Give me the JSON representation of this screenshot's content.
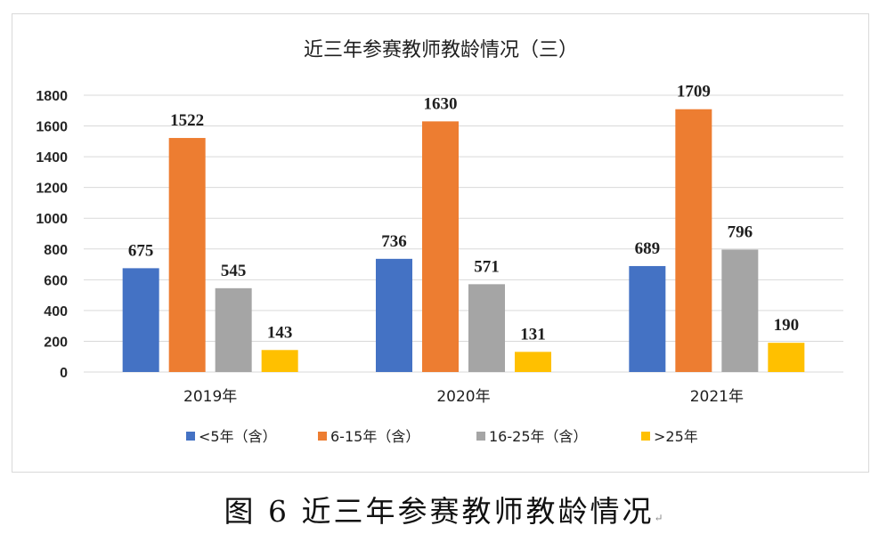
{
  "chart_data": {
    "type": "bar",
    "title": "近三年参赛教师教龄情况（三）",
    "categories": [
      "2019年",
      "2020年",
      "2021年"
    ],
    "series": [
      {
        "name": "<5年（含）",
        "values": [
          675,
          736,
          689
        ],
        "color": "#4472c4"
      },
      {
        "name": "6-15年（含）",
        "values": [
          1522,
          1630,
          1709
        ],
        "color": "#ed7d31"
      },
      {
        "name": "16-25年（含）",
        "values": [
          545,
          571,
          796
        ],
        "color": "#a5a5a5"
      },
      {
        "name": ">25年",
        "values": [
          143,
          131,
          190
        ],
        "color": "#ffc000"
      }
    ],
    "ylim": [
      0,
      1800
    ],
    "yticks": [
      "0",
      "200",
      "400",
      "600",
      "800",
      "1000",
      "1200",
      "1400",
      "1600",
      "1800"
    ],
    "grid": true,
    "legend_position": "bottom",
    "data_labels": true
  },
  "caption": {
    "text": "图 6 近三年参赛教师教龄情况",
    "mark": "↵"
  }
}
